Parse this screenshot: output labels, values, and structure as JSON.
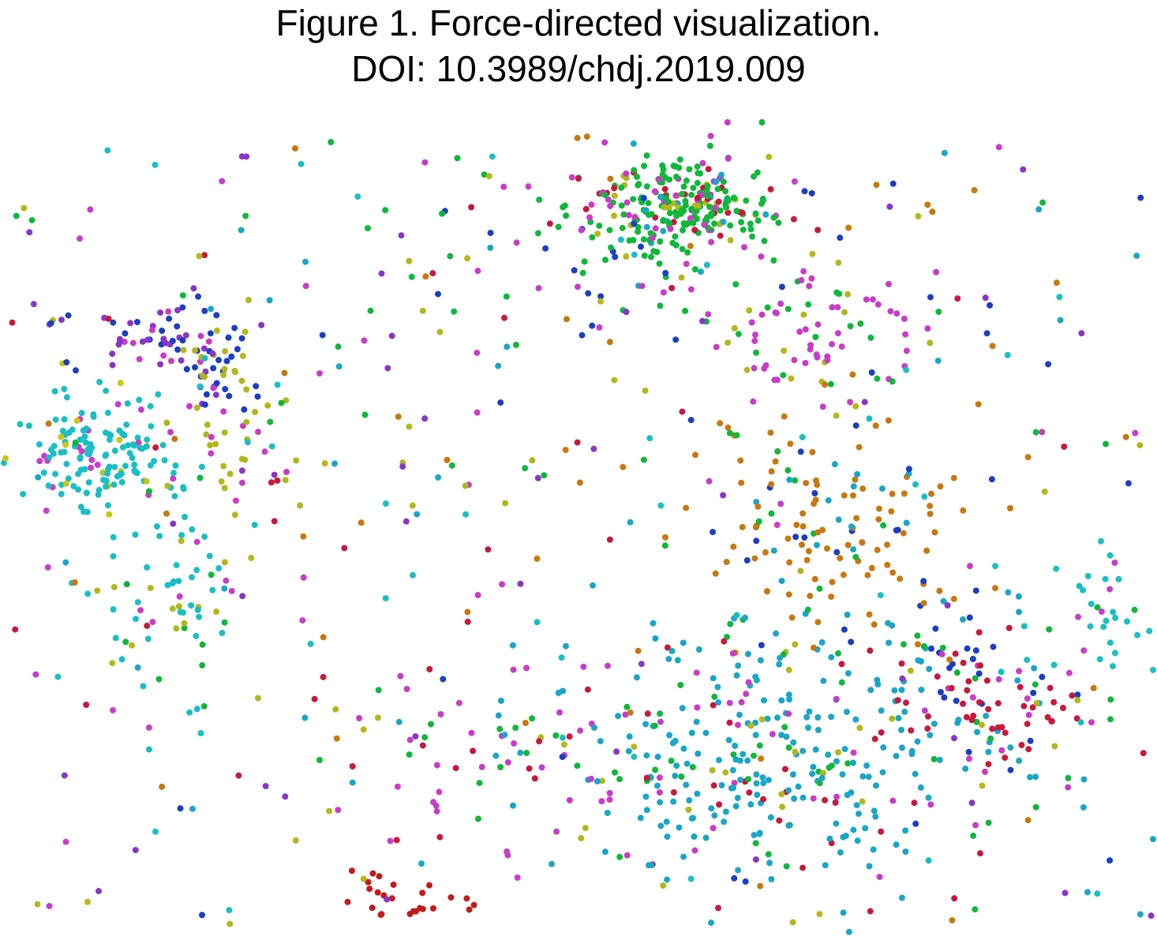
{
  "figure": {
    "caption_line_1": "Figure 1. Force-directed visualization.",
    "caption_line_2": "DOI: 10.3989/chdj.2019.009"
  },
  "legend": null,
  "colors": {
    "cyan": "#19bfc4",
    "teal_blue": "#1aa6c8",
    "green": "#0fb83a",
    "magenta": "#c93cc8",
    "purple": "#8a35c9",
    "blue": "#1a3fc4",
    "red": "#c8193c",
    "dark_red": "#c41a1a",
    "orange": "#c8780f",
    "olive": "#b3b81a",
    "yellow": "#c8c80f"
  },
  "clusters": [
    {
      "name": "left-cyan-cluster",
      "color": "cyan",
      "count": 150
    },
    {
      "name": "left-purple-cluster",
      "color": "purple",
      "count": 40
    },
    {
      "name": "left-blue-cluster",
      "color": "blue",
      "count": 50
    },
    {
      "name": "top-green-cluster",
      "color": "green",
      "count": 240
    },
    {
      "name": "top-green-sparse-halo",
      "color": "green",
      "count": 70
    },
    {
      "name": "orange-cluster",
      "color": "orange",
      "count": 130
    },
    {
      "name": "bottom-teal-cluster",
      "color": "teal_blue",
      "count": 330
    },
    {
      "name": "bottom-right-red-cluster",
      "color": "red",
      "count": 70
    },
    {
      "name": "right-magenta-cluster",
      "color": "magenta",
      "count": 70
    },
    {
      "name": "bottom-magenta-cluster",
      "color": "magenta",
      "count": 60
    },
    {
      "name": "bottom-dark-red-cluster",
      "color": "dark_red",
      "count": 25
    },
    {
      "name": "right-blue-cluster",
      "color": "blue",
      "count": 25
    },
    {
      "name": "far-right-cyan-cluster",
      "color": "cyan",
      "count": 35
    },
    {
      "name": "left-lower-cyan-cluster",
      "color": "cyan",
      "count": 70
    },
    {
      "name": "left-olive-cluster",
      "color": "olive",
      "count": 40
    },
    {
      "name": "scattered-nodes",
      "color": "mixed",
      "count": 380
    }
  ]
}
